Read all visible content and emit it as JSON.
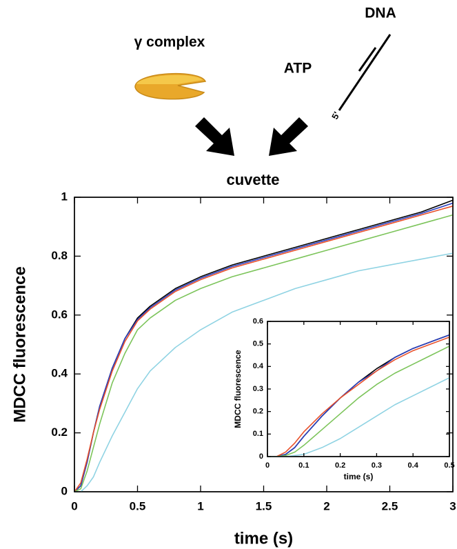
{
  "diagram": {
    "labels": [
      "γ complex",
      "ATP",
      "DNA",
      "5'",
      "cuvette"
    ]
  },
  "chart_data": [
    {
      "type": "line",
      "x_label": "time (s)",
      "y_label": "MDCC fluorescence",
      "x": [
        0,
        0.05,
        0.1,
        0.15,
        0.2,
        0.3,
        0.4,
        0.5,
        0.6,
        0.8,
        1.0,
        1.25,
        1.5,
        1.75,
        2.0,
        2.25,
        2.5,
        2.75,
        3.0
      ],
      "series": [
        {
          "color": "#000000",
          "values": [
            0,
            0.02,
            0.1,
            0.2,
            0.29,
            0.42,
            0.52,
            0.59,
            0.63,
            0.69,
            0.73,
            0.77,
            0.8,
            0.83,
            0.86,
            0.89,
            0.92,
            0.95,
            0.99
          ]
        },
        {
          "color": "#2a3fbf",
          "values": [
            0,
            0.02,
            0.1,
            0.2,
            0.29,
            0.42,
            0.52,
            0.585,
            0.625,
            0.685,
            0.725,
            0.765,
            0.795,
            0.825,
            0.855,
            0.885,
            0.915,
            0.945,
            0.98
          ]
        },
        {
          "color": "#e8502a",
          "values": [
            0,
            0.03,
            0.11,
            0.2,
            0.28,
            0.41,
            0.51,
            0.58,
            0.62,
            0.68,
            0.72,
            0.76,
            0.79,
            0.82,
            0.85,
            0.88,
            0.91,
            0.94,
            0.97
          ]
        },
        {
          "color": "#7cc45a",
          "values": [
            0,
            0.01,
            0.07,
            0.15,
            0.23,
            0.37,
            0.47,
            0.55,
            0.59,
            0.65,
            0.69,
            0.73,
            0.76,
            0.79,
            0.82,
            0.85,
            0.88,
            0.91,
            0.94
          ]
        },
        {
          "color": "#8fd3e3",
          "values": [
            0,
            0,
            0.02,
            0.05,
            0.1,
            0.19,
            0.27,
            0.35,
            0.41,
            0.49,
            0.55,
            0.61,
            0.65,
            0.69,
            0.72,
            0.75,
            0.77,
            0.79,
            0.81
          ]
        }
      ],
      "xlim": [
        0,
        3
      ],
      "ylim": [
        0,
        1
      ],
      "xticks": [
        0,
        0.5,
        1,
        1.5,
        2,
        2.5,
        3
      ],
      "yticks": [
        0,
        0.2,
        0.4,
        0.6,
        0.8,
        1
      ]
    },
    {
      "type": "line",
      "x_label": "time (s)",
      "y_label": "MDCC fluorescence",
      "x": [
        0,
        0.025,
        0.05,
        0.075,
        0.1,
        0.15,
        0.2,
        0.25,
        0.3,
        0.35,
        0.4,
        0.45,
        0.5
      ],
      "series": [
        {
          "color": "#000000",
          "values": [
            0,
            0,
            0.01,
            0.04,
            0.09,
            0.18,
            0.26,
            0.33,
            0.39,
            0.44,
            0.48,
            0.51,
            0.54
          ]
        },
        {
          "color": "#2a3fbf",
          "values": [
            0,
            0,
            0.01,
            0.04,
            0.09,
            0.18,
            0.26,
            0.33,
            0.38,
            0.44,
            0.48,
            0.51,
            0.54
          ]
        },
        {
          "color": "#e8502a",
          "values": [
            0,
            0,
            0.02,
            0.06,
            0.11,
            0.19,
            0.26,
            0.32,
            0.38,
            0.43,
            0.47,
            0.5,
            0.53
          ]
        },
        {
          "color": "#7cc45a",
          "values": [
            0,
            0,
            0.005,
            0.02,
            0.05,
            0.12,
            0.19,
            0.26,
            0.32,
            0.37,
            0.41,
            0.45,
            0.49
          ]
        },
        {
          "color": "#8fd3e3",
          "values": [
            0,
            0,
            0,
            0.005,
            0.01,
            0.04,
            0.08,
            0.13,
            0.18,
            0.23,
            0.27,
            0.31,
            0.35
          ]
        }
      ],
      "xlim": [
        0,
        0.5
      ],
      "ylim": [
        0,
        0.6
      ],
      "xticks": [
        0,
        0.1,
        0.2,
        0.3,
        0.4,
        0.5
      ],
      "yticks": [
        0,
        0.1,
        0.2,
        0.3,
        0.4,
        0.5,
        0.6
      ]
    }
  ]
}
